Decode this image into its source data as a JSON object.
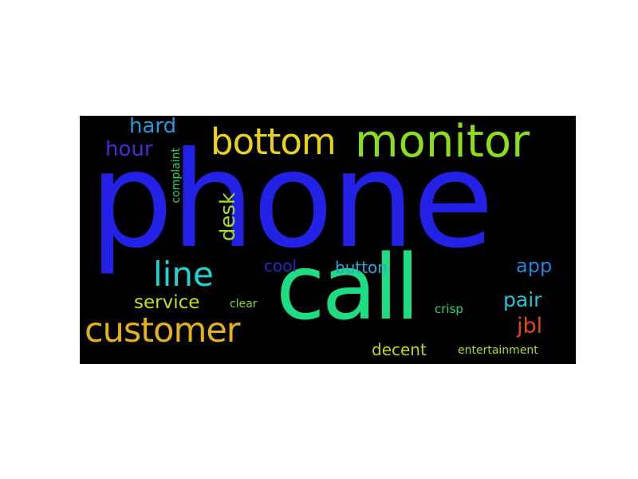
{
  "background_color": "#000000",
  "words": [
    {
      "id": "phone",
      "text": "phone",
      "color": "#2421e6",
      "orientation": "horizontal"
    },
    {
      "id": "call",
      "text": "call",
      "color": "#1edc82",
      "orientation": "horizontal"
    },
    {
      "id": "monitor",
      "text": "monitor",
      "color": "#8ddc1e",
      "orientation": "horizontal"
    },
    {
      "id": "bottom",
      "text": "bottom",
      "color": "#e6d21c",
      "orientation": "horizontal"
    },
    {
      "id": "customer",
      "text": "customer",
      "color": "#e2b21a",
      "orientation": "horizontal"
    },
    {
      "id": "line",
      "text": "line",
      "color": "#1fd4d0",
      "orientation": "horizontal"
    },
    {
      "id": "hard",
      "text": "hard",
      "color": "#2598d8",
      "orientation": "horizontal"
    },
    {
      "id": "hour",
      "text": "hour",
      "color": "#4a2ad6",
      "orientation": "horizontal"
    },
    {
      "id": "desk",
      "text": "desk",
      "color": "#a6da1c",
      "orientation": "vertical"
    },
    {
      "id": "complaint",
      "text": "complaint",
      "color": "#26d468",
      "orientation": "vertical"
    },
    {
      "id": "service",
      "text": "service",
      "color": "#c8dc1e",
      "orientation": "horizontal"
    },
    {
      "id": "clear",
      "text": "clear",
      "color": "#86d61c",
      "orientation": "horizontal"
    },
    {
      "id": "cool",
      "text": "cool",
      "color": "#2a28c8",
      "orientation": "horizontal"
    },
    {
      "id": "button",
      "text": "button",
      "color": "#26a8dc",
      "orientation": "horizontal"
    },
    {
      "id": "app",
      "text": "app",
      "color": "#2184d6",
      "orientation": "horizontal"
    },
    {
      "id": "pair",
      "text": "pair",
      "color": "#22c6d8",
      "orientation": "horizontal"
    },
    {
      "id": "crisp",
      "text": "crisp",
      "color": "#26d47a",
      "orientation": "horizontal"
    },
    {
      "id": "jbl",
      "text": "jbl",
      "color": "#e2461c",
      "orientation": "horizontal"
    },
    {
      "id": "decent",
      "text": "decent",
      "color": "#c2d21e",
      "orientation": "horizontal"
    },
    {
      "id": "entertainment",
      "text": "entertainment",
      "color": "#aedc1c",
      "orientation": "horizontal"
    }
  ]
}
